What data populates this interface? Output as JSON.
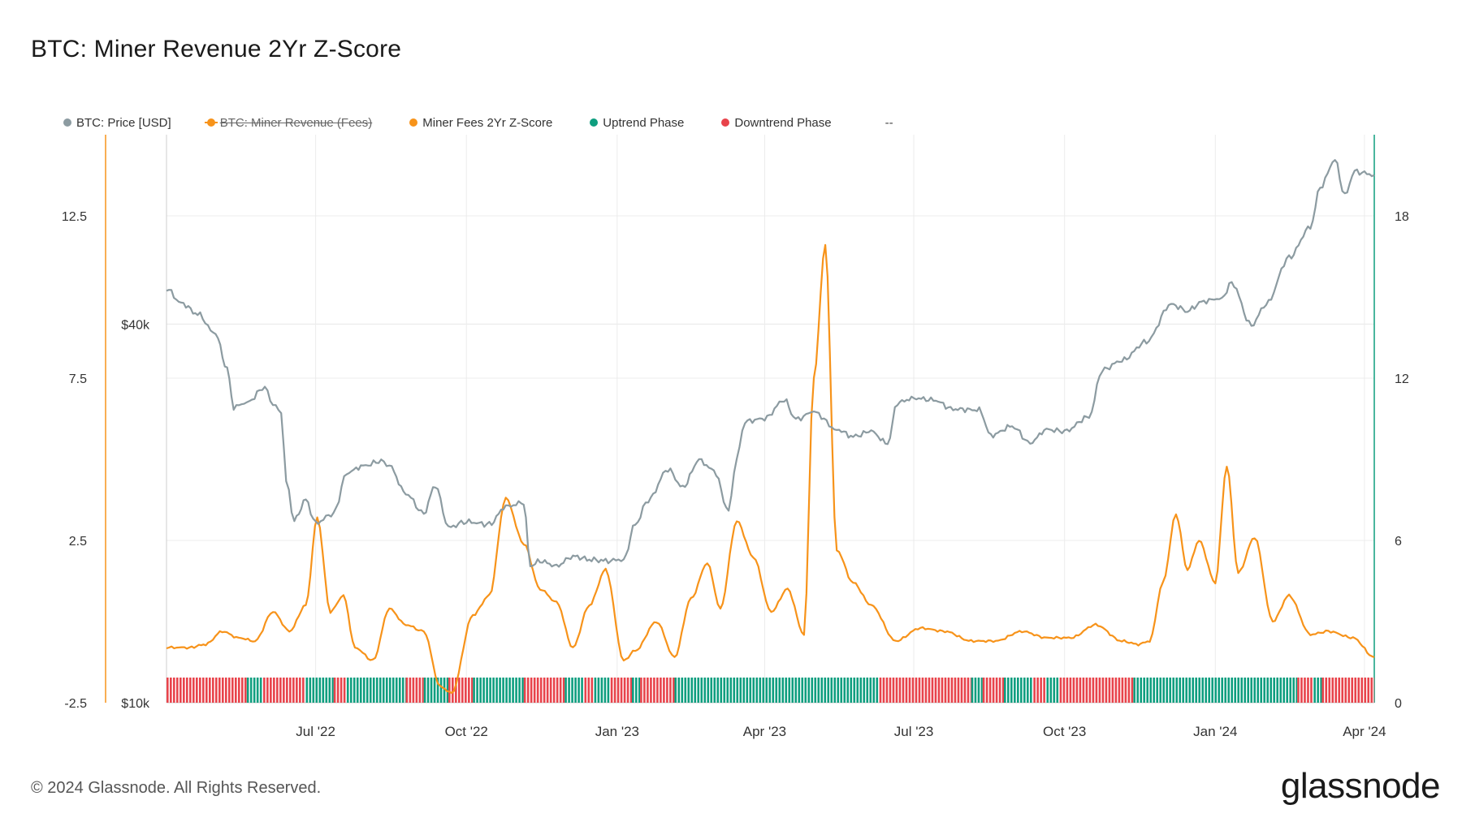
{
  "title": "BTC: Miner Revenue 2Yr Z-Score",
  "footer": {
    "copyright": "© 2024 Glassnode. All Rights Reserved.",
    "logo": "glassnode"
  },
  "legend": [
    {
      "label": "BTC: Price [USD]",
      "color": "#8c9ba1",
      "strike": false
    },
    {
      "label": "BTC: Miner Revenue (Fees)",
      "color": "#f7931a",
      "strike": true
    },
    {
      "label": "Miner Fees 2Yr Z-Score",
      "color": "#f7931a",
      "strike": false
    },
    {
      "label": "Uptrend Phase",
      "color": "#0e9e7f",
      "strike": false
    },
    {
      "label": "Downtrend Phase",
      "color": "#e8434b",
      "strike": false
    }
  ],
  "legend_extra": "--",
  "chart_data": {
    "type": "line",
    "title": "BTC: Miner Revenue 2Yr Z-Score",
    "x_range": [
      "2022-04-01",
      "2024-04-07"
    ],
    "x_ticks": [
      {
        "label": "Jul '22",
        "date": "2022-07-01"
      },
      {
        "label": "Oct '22",
        "date": "2022-10-01"
      },
      {
        "label": "Jan '23",
        "date": "2023-01-01"
      },
      {
        "label": "Apr '23",
        "date": "2023-04-01"
      },
      {
        "label": "Jul '23",
        "date": "2023-07-01"
      },
      {
        "label": "Oct '23",
        "date": "2023-10-01"
      },
      {
        "label": "Jan '24",
        "date": "2024-01-01"
      },
      {
        "label": "Apr '24",
        "date": "2024-04-01"
      }
    ],
    "axes": {
      "z_score": {
        "side": "left-outer",
        "range": [
          -2.5,
          15
        ],
        "ticks": [
          "-2.5",
          "2.5",
          "7.5",
          "12.5"
        ],
        "tick_values": [
          -2.5,
          2.5,
          7.5,
          12.5
        ]
      },
      "price": {
        "side": "left-inner",
        "scale": "log",
        "range": [
          10000,
          80000
        ],
        "ticks": [
          "$10k",
          "$40k"
        ],
        "tick_values": [
          10000,
          40000
        ]
      },
      "right": {
        "side": "right",
        "range": [
          0,
          21
        ],
        "ticks": [
          "0",
          "6",
          "12",
          "18"
        ],
        "tick_values": [
          0,
          6,
          12,
          18
        ]
      }
    },
    "grid": true,
    "series": [
      {
        "name": "BTC: Price [USD]",
        "color": "#8c9ba1",
        "axis": "price",
        "x": [
          "2022-04-01",
          "2022-04-10",
          "2022-04-20",
          "2022-05-01",
          "2022-05-08",
          "2022-05-12",
          "2022-05-20",
          "2022-05-31",
          "2022-06-05",
          "2022-06-10",
          "2022-06-13",
          "2022-06-18",
          "2022-06-25",
          "2022-07-01",
          "2022-07-12",
          "2022-07-20",
          "2022-07-30",
          "2022-08-10",
          "2022-08-15",
          "2022-08-25",
          "2022-09-05",
          "2022-09-12",
          "2022-09-20",
          "2022-10-01",
          "2022-10-15",
          "2022-10-25",
          "2022-11-05",
          "2022-11-09",
          "2022-11-15",
          "2022-11-25",
          "2022-12-05",
          "2022-12-15",
          "2022-12-25",
          "2023-01-05",
          "2023-01-12",
          "2023-01-20",
          "2023-02-01",
          "2023-02-10",
          "2023-02-20",
          "2023-03-01",
          "2023-03-10",
          "2023-03-15",
          "2023-03-20",
          "2023-04-01",
          "2023-04-13",
          "2023-04-20",
          "2023-05-01",
          "2023-05-15",
          "2023-05-25",
          "2023-06-05",
          "2023-06-15",
          "2023-06-21",
          "2023-07-01",
          "2023-07-13",
          "2023-07-25",
          "2023-08-10",
          "2023-08-17",
          "2023-08-30",
          "2023-09-10",
          "2023-09-20",
          "2023-10-01",
          "2023-10-16",
          "2023-10-24",
          "2023-11-05",
          "2023-11-20",
          "2023-12-05",
          "2023-12-15",
          "2023-12-25",
          "2024-01-05",
          "2024-01-11",
          "2024-01-23",
          "2024-02-01",
          "2024-02-15",
          "2024-02-28",
          "2024-03-05",
          "2024-03-14",
          "2024-03-20",
          "2024-03-26",
          "2024-04-01",
          "2024-04-07"
        ],
        "values": [
          45500,
          43200,
          41500,
          38500,
          34000,
          29500,
          30000,
          31700,
          29800,
          29000,
          22500,
          19500,
          21000,
          19300,
          20000,
          23200,
          23800,
          24200,
          23800,
          21500,
          20000,
          22200,
          19000,
          19400,
          19200,
          20500,
          20800,
          16500,
          16800,
          16500,
          17100,
          16900,
          16800,
          16900,
          19200,
          21000,
          23500,
          22000,
          24300,
          23400,
          20200,
          24500,
          28000,
          28300,
          30300,
          28200,
          29000,
          27200,
          26500,
          27000,
          25800,
          30000,
          30500,
          30300,
          29300,
          29200,
          26600,
          27500,
          25900,
          27200,
          27000,
          28500,
          33800,
          35000,
          37500,
          43000,
          42000,
          43500,
          44000,
          46500,
          39800,
          43000,
          51000,
          57000,
          66000,
          73000,
          64000,
          70000,
          69500,
          69000
        ]
      },
      {
        "name": "Miner Fees 2Yr Z-Score",
        "color": "#f7931a",
        "axis": "z_score",
        "x": [
          "2022-04-01",
          "2022-04-15",
          "2022-04-25",
          "2022-05-05",
          "2022-05-15",
          "2022-05-25",
          "2022-06-05",
          "2022-06-15",
          "2022-06-25",
          "2022-07-02",
          "2022-07-10",
          "2022-07-18",
          "2022-07-25",
          "2022-08-05",
          "2022-08-15",
          "2022-08-25",
          "2022-09-05",
          "2022-09-15",
          "2022-09-22",
          "2022-10-05",
          "2022-10-15",
          "2022-10-25",
          "2022-11-05",
          "2022-11-15",
          "2022-11-25",
          "2022-12-05",
          "2022-12-15",
          "2022-12-25",
          "2023-01-05",
          "2023-01-12",
          "2023-01-25",
          "2023-02-05",
          "2023-02-15",
          "2023-02-25",
          "2023-03-05",
          "2023-03-15",
          "2023-03-25",
          "2023-04-05",
          "2023-04-15",
          "2023-04-25",
          "2023-05-01",
          "2023-05-08",
          "2023-05-15",
          "2023-05-25",
          "2023-06-05",
          "2023-06-20",
          "2023-07-05",
          "2023-07-20",
          "2023-08-05",
          "2023-08-20",
          "2023-09-05",
          "2023-09-20",
          "2023-10-05",
          "2023-10-20",
          "2023-11-05",
          "2023-11-15",
          "2023-11-22",
          "2023-11-30",
          "2023-12-08",
          "2023-12-15",
          "2023-12-22",
          "2024-01-01",
          "2024-01-08",
          "2024-01-15",
          "2024-01-25",
          "2024-02-05",
          "2024-02-15",
          "2024-02-28",
          "2024-03-10",
          "2024-03-25",
          "2024-04-07"
        ],
        "values": [
          -0.8,
          -0.8,
          -0.7,
          -0.3,
          -0.5,
          -0.6,
          0.3,
          -0.3,
          0.5,
          3.2,
          0.3,
          0.8,
          -0.8,
          -1.2,
          0.4,
          -0.1,
          -0.3,
          -2.0,
          -2.2,
          0.2,
          0.8,
          3.8,
          2.4,
          1.0,
          0.6,
          -0.8,
          0.5,
          1.6,
          -1.2,
          -0.9,
          0.0,
          -1.1,
          0.7,
          1.8,
          0.4,
          3.1,
          2.0,
          0.3,
          1.0,
          -0.4,
          7.5,
          11.6,
          2.2,
          1.2,
          0.5,
          -0.6,
          -0.2,
          -0.3,
          -0.6,
          -0.6,
          -0.3,
          -0.5,
          -0.5,
          -0.1,
          -0.6,
          -0.7,
          -0.6,
          1.2,
          3.3,
          1.6,
          2.5,
          1.2,
          4.8,
          1.5,
          2.6,
          0.0,
          0.8,
          -0.4,
          -0.3,
          -0.5,
          -1.1
        ]
      }
    ],
    "phases": {
      "up_color": "#0e9e7f",
      "down_color": "#e8434b",
      "segments": [
        {
          "start": "2022-04-01",
          "end": "2022-05-20",
          "phase": "down"
        },
        {
          "start": "2022-05-20",
          "end": "2022-05-30",
          "phase": "up"
        },
        {
          "start": "2022-05-30",
          "end": "2022-06-25",
          "phase": "down"
        },
        {
          "start": "2022-06-25",
          "end": "2022-07-12",
          "phase": "up"
        },
        {
          "start": "2022-07-12",
          "end": "2022-07-20",
          "phase": "down"
        },
        {
          "start": "2022-07-20",
          "end": "2022-08-25",
          "phase": "up"
        },
        {
          "start": "2022-08-25",
          "end": "2022-09-05",
          "phase": "down"
        },
        {
          "start": "2022-09-05",
          "end": "2022-09-20",
          "phase": "up"
        },
        {
          "start": "2022-09-20",
          "end": "2022-10-05",
          "phase": "down"
        },
        {
          "start": "2022-10-05",
          "end": "2022-11-05",
          "phase": "up"
        },
        {
          "start": "2022-11-05",
          "end": "2022-11-30",
          "phase": "down"
        },
        {
          "start": "2022-11-30",
          "end": "2022-12-12",
          "phase": "up"
        },
        {
          "start": "2022-12-12",
          "end": "2022-12-18",
          "phase": "down"
        },
        {
          "start": "2022-12-18",
          "end": "2022-12-28",
          "phase": "up"
        },
        {
          "start": "2022-12-28",
          "end": "2023-01-10",
          "phase": "down"
        },
        {
          "start": "2023-01-10",
          "end": "2023-01-15",
          "phase": "up"
        },
        {
          "start": "2023-01-15",
          "end": "2023-02-05",
          "phase": "down"
        },
        {
          "start": "2023-02-05",
          "end": "2023-06-10",
          "phase": "up"
        },
        {
          "start": "2023-06-10",
          "end": "2023-08-05",
          "phase": "down"
        },
        {
          "start": "2023-08-05",
          "end": "2023-08-12",
          "phase": "up"
        },
        {
          "start": "2023-08-12",
          "end": "2023-08-25",
          "phase": "down"
        },
        {
          "start": "2023-08-25",
          "end": "2023-09-12",
          "phase": "up"
        },
        {
          "start": "2023-09-12",
          "end": "2023-09-20",
          "phase": "down"
        },
        {
          "start": "2023-09-20",
          "end": "2023-09-28",
          "phase": "up"
        },
        {
          "start": "2023-09-28",
          "end": "2023-11-12",
          "phase": "down"
        },
        {
          "start": "2023-11-12",
          "end": "2024-02-20",
          "phase": "up"
        },
        {
          "start": "2024-02-20",
          "end": "2024-03-01",
          "phase": "down"
        },
        {
          "start": "2024-03-01",
          "end": "2024-03-06",
          "phase": "up"
        },
        {
          "start": "2024-03-06",
          "end": "2024-04-07",
          "phase": "down"
        }
      ]
    }
  }
}
